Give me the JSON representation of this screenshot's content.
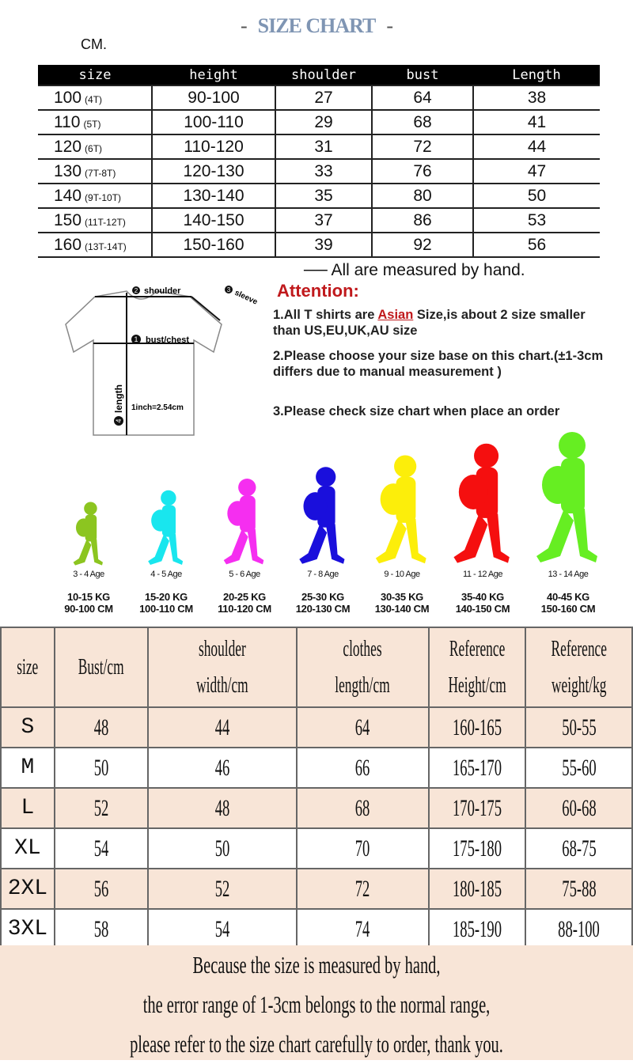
{
  "title": "SIZE CHART",
  "unit": "CM.",
  "kids_table": {
    "headers": [
      "size",
      "height",
      "shoulder",
      "bust",
      "Length"
    ],
    "rows": [
      {
        "size": "100",
        "age": "(4T)",
        "height": "90-100",
        "shoulder": "27",
        "bust": "64",
        "length": "38"
      },
      {
        "size": "110",
        "age": "(5T)",
        "height": "100-110",
        "shoulder": "29",
        "bust": "68",
        "length": "41"
      },
      {
        "size": "120",
        "age": "(6T)",
        "height": "110-120",
        "shoulder": "31",
        "bust": "72",
        "length": "44"
      },
      {
        "size": "130",
        "age": "(7T-8T)",
        "height": "120-130",
        "shoulder": "33",
        "bust": "76",
        "length": "47"
      },
      {
        "size": "140",
        "age": "(9T-10T)",
        "height": "130-140",
        "shoulder": "35",
        "bust": "80",
        "length": "50"
      },
      {
        "size": "150",
        "age": "(11T-12T)",
        "height": "140-150",
        "shoulder": "37",
        "bust": "86",
        "length": "53"
      },
      {
        "size": "160",
        "age": "(13T-14T)",
        "height": "150-160",
        "shoulder": "39",
        "bust": "92",
        "length": "56"
      }
    ],
    "note": "All are measured by hand."
  },
  "diagram": {
    "shoulder": "shoulder",
    "sleeve": "sleeve",
    "bust": "bust/chest",
    "length": "length",
    "inch": "1inch=2.54cm",
    "n1": "1",
    "n2": "2",
    "n3": "3",
    "n4": "4"
  },
  "attention": {
    "title": "Attention:",
    "p1_a": "1.All T shirts are ",
    "p1_asian": "Asian",
    "p1_b": " Size,is about 2 size smaller than US,EU,UK,AU size",
    "p2": "2.Please choose your size base on this chart.(±1-3cm differs due to manual measurement )",
    "p3": "3.Please check size chart when place an order"
  },
  "kids": [
    {
      "age": "3 - 4 Age",
      "kg": "10-15 KG",
      "cm": "90-100 CM",
      "color": "#8cc520"
    },
    {
      "age": "4 - 5 Age",
      "kg": "15-20 KG",
      "cm": "100-110 CM",
      "color": "#19e6ee"
    },
    {
      "age": "5 - 6 Age",
      "kg": "20-25 KG",
      "cm": "110-120 CM",
      "color": "#f52ef0"
    },
    {
      "age": "7 - 8 Age",
      "kg": "25-30 KG",
      "cm": "120-130 CM",
      "color": "#1a0fdc"
    },
    {
      "age": "9 - 10 Age",
      "kg": "30-35 KG",
      "cm": "130-140 CM",
      "color": "#fcee0a"
    },
    {
      "age": "11 - 12 Age",
      "kg": "35-40 KG",
      "cm": "140-150 CM",
      "color": "#f50f0f"
    },
    {
      "age": "13 - 14 Age",
      "kg": "40-45 KG",
      "cm": "150-160 CM",
      "color": "#66ee22"
    }
  ],
  "adult_table": {
    "headers": [
      "size",
      "Bust/cm",
      "shoulder width/cm",
      "clothes length/cm",
      "Reference Height/cm",
      "Reference weight/kg"
    ],
    "rows": [
      [
        "S",
        "48",
        "44",
        "64",
        "160-165",
        "50-55"
      ],
      [
        "M",
        "50",
        "46",
        "66",
        "165-170",
        "55-60"
      ],
      [
        "L",
        "52",
        "48",
        "68",
        "170-175",
        "60-68"
      ],
      [
        "XL",
        "54",
        "50",
        "70",
        "175-180",
        "68-75"
      ],
      [
        "2XL",
        "56",
        "52",
        "72",
        "180-185",
        "75-88"
      ],
      [
        "3XL",
        "58",
        "54",
        "74",
        "185-190",
        "88-100"
      ]
    ],
    "row_color": "#f8e5d7"
  },
  "footer": [
    "Because the size is measured by hand,",
    "the error range of 1-3cm belongs to the normal range,",
    "please refer to the size chart carefully to order, thank you."
  ]
}
